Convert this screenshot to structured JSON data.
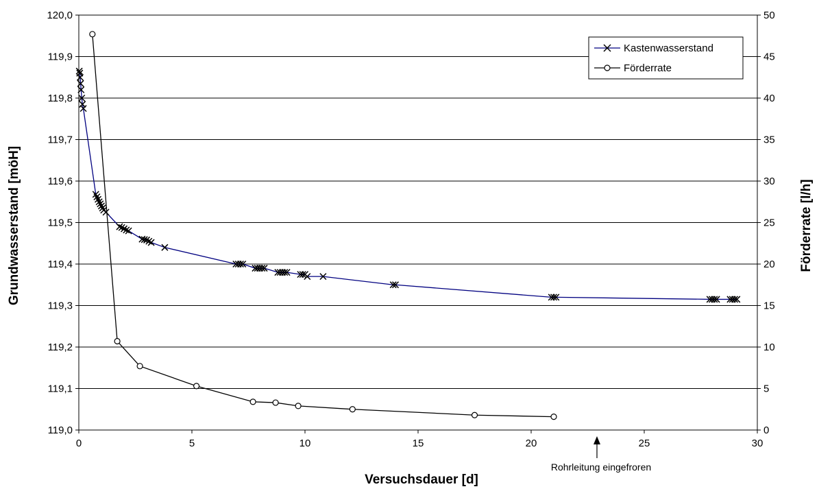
{
  "chart_data": {
    "type": "line",
    "xlabel": "Versuchsdauer [d]",
    "ylabel": "Grundwasserstand [möH]",
    "y2label": "Förderrate [l/h]",
    "xlim": [
      0,
      30
    ],
    "ylim": [
      119.0,
      120.0
    ],
    "y2lim": [
      0,
      50
    ],
    "xticks": [
      "0",
      "5",
      "10",
      "15",
      "20",
      "25",
      "30"
    ],
    "yticks": [
      "119,0",
      "119,1",
      "119,2",
      "119,3",
      "119,4",
      "119,5",
      "119,6",
      "119,7",
      "119,8",
      "119,9",
      "120,0"
    ],
    "y2ticks": [
      "0",
      "5",
      "10",
      "15",
      "20",
      "25",
      "30",
      "35",
      "40",
      "45",
      "50"
    ],
    "grid": "horizontal",
    "legend_position": "top-right",
    "annotation": {
      "text": "Rohrleitung eingefroren",
      "x": 23
    },
    "series": [
      {
        "name": "Kastenwasserstand",
        "axis": "left",
        "color": "#000080",
        "marker": "x",
        "x": [
          0.02,
          0.04,
          0.06,
          0.08,
          0.1,
          0.13,
          0.16,
          0.2,
          0.75,
          0.8,
          0.85,
          0.9,
          0.95,
          1.0,
          1.05,
          1.1,
          1.2,
          1.8,
          1.9,
          2.0,
          2.1,
          2.2,
          2.8,
          2.9,
          3.0,
          3.1,
          3.2,
          3.8,
          6.95,
          7.05,
          7.15,
          7.25,
          7.8,
          7.9,
          8.0,
          8.1,
          8.2,
          8.8,
          8.9,
          9.0,
          9.1,
          9.2,
          9.8,
          9.9,
          10.0,
          10.1,
          10.8,
          13.9,
          14.0,
          20.9,
          21.0,
          21.1,
          27.9,
          28.0,
          28.1,
          28.2,
          28.8,
          28.9,
          29.0,
          29.1
        ],
        "values": [
          119.865,
          119.86,
          119.85,
          119.835,
          119.82,
          119.8,
          119.785,
          119.775,
          119.568,
          119.562,
          119.556,
          119.55,
          119.545,
          119.54,
          119.535,
          119.53,
          119.525,
          119.49,
          119.488,
          119.485,
          119.482,
          119.48,
          119.46,
          119.459,
          119.458,
          119.455,
          119.452,
          119.44,
          119.4,
          119.4,
          119.4,
          119.4,
          119.39,
          119.39,
          119.39,
          119.39,
          119.39,
          119.38,
          119.38,
          119.38,
          119.38,
          119.38,
          119.375,
          119.375,
          119.375,
          119.37,
          119.37,
          119.35,
          119.35,
          119.32,
          119.32,
          119.32,
          119.315,
          119.315,
          119.315,
          119.315,
          119.315,
          119.315,
          119.315,
          119.315
        ]
      },
      {
        "name": "Förderrate",
        "axis": "right",
        "color": "#000000",
        "marker": "circle",
        "x": [
          0.6,
          1.7,
          2.7,
          5.2,
          7.7,
          8.7,
          9.7,
          12.1,
          17.5,
          21.0
        ],
        "values": [
          47.7,
          10.7,
          7.7,
          5.3,
          3.4,
          3.3,
          2.9,
          2.5,
          1.8,
          1.6
        ]
      }
    ]
  }
}
